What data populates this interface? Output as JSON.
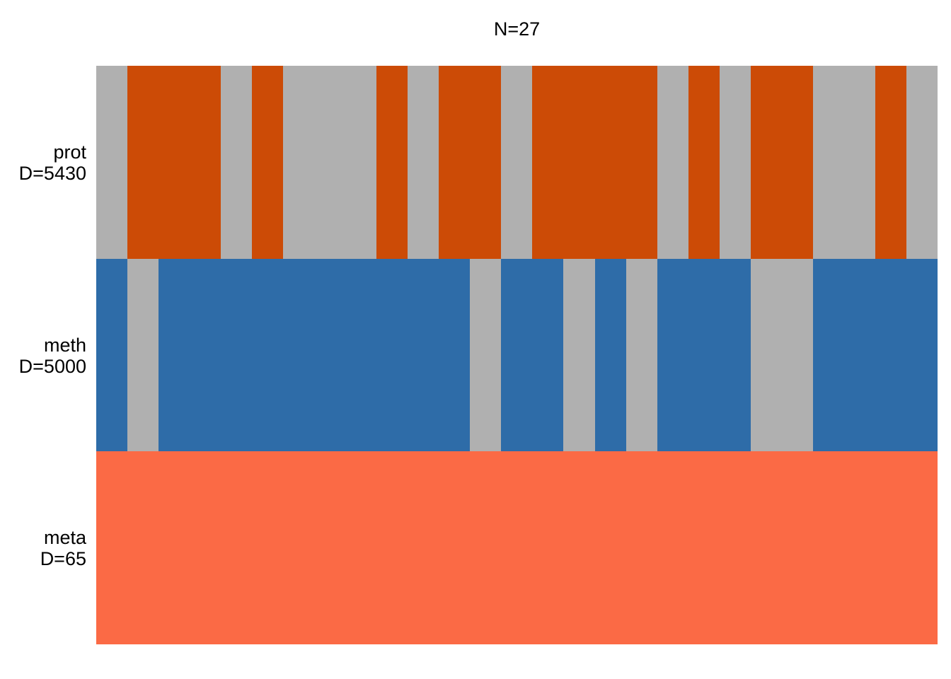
{
  "title": "N=27",
  "colors": {
    "background": "#FFFFFF",
    "text": "#000000",
    "missing": "#B0B0B0",
    "prot_present": "#CC4B06",
    "meth_present": "#2E6CA8",
    "meta_present": "#FB6A45"
  },
  "chart_data": {
    "type": "heatmap",
    "title": "N=27",
    "n_samples": 27,
    "x": "samples (1-27)",
    "missing_color": "#B0B0B0",
    "views": [
      {
        "name": "prot",
        "d_label": "D=5430",
        "D": 5430,
        "color": "#CC4B06",
        "presence": [
          0,
          1,
          1,
          1,
          0,
          1,
          0,
          0,
          0,
          1,
          0,
          1,
          1,
          0,
          1,
          1,
          1,
          1,
          0,
          1,
          0,
          1,
          1,
          0,
          0,
          1,
          0
        ]
      },
      {
        "name": "meth",
        "d_label": "D=5000",
        "D": 5000,
        "color": "#2E6CA8",
        "presence": [
          1,
          0,
          1,
          1,
          1,
          1,
          1,
          1,
          1,
          1,
          1,
          1,
          0,
          1,
          1,
          0,
          1,
          0,
          1,
          1,
          1,
          0,
          0,
          1,
          1,
          1,
          1
        ]
      },
      {
        "name": "meta",
        "d_label": "D=65",
        "D": 65,
        "color": "#FB6A45",
        "presence": [
          1,
          1,
          1,
          1,
          1,
          1,
          1,
          1,
          1,
          1,
          1,
          1,
          1,
          1,
          1,
          1,
          1,
          1,
          1,
          1,
          1,
          1,
          1,
          1,
          1,
          1,
          1
        ]
      }
    ]
  }
}
